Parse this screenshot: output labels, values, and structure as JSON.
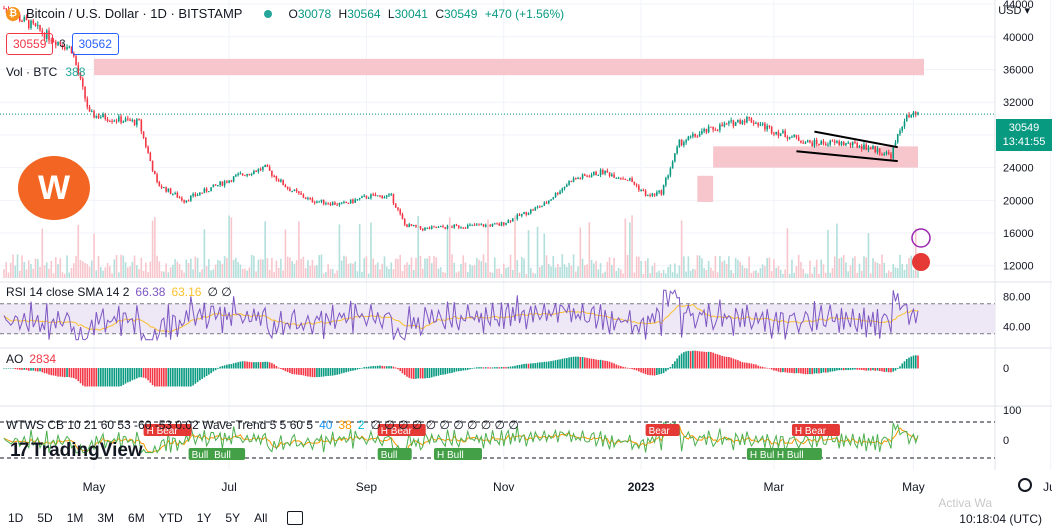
{
  "header": {
    "coin_icon": "bitcoin-icon",
    "title": "Bitcoin / U.S. Dollar · 1D · BITSTAMP",
    "ohlc": [
      {
        "k": "O",
        "v": "30078"
      },
      {
        "k": "H",
        "v": "30564"
      },
      {
        "k": "L",
        "v": "30041"
      },
      {
        "k": "C",
        "v": "30549"
      },
      {
        "k": "",
        "v": "+470 (+1.56%)"
      }
    ]
  },
  "quote": {
    "sell": "30559",
    "spread": "3",
    "buy": "30562"
  },
  "volume": {
    "label": "Vol · BTC",
    "value": "388"
  },
  "currency": "USD",
  "current_price": {
    "value": "30549",
    "countdown": "13:41:55"
  },
  "rsi": {
    "label": "RSI 14 close SMA 14 2",
    "value": "66.38",
    "sma": "63.16",
    "extra": "∅ ∅"
  },
  "ao": {
    "label": "AO",
    "value": "2834"
  },
  "wavetrend": {
    "label": "WTWS CB 10 21 60 53 -60 -53 0.02 Wave Trend 5 5 60 5",
    "v1": "40",
    "v2": "38",
    "v3": "2",
    "extra": "∅ ∅ ∅ ∅ ∅ ∅ ∅ ∅ ∅ ∅ ∅"
  },
  "timeframes": [
    "1D",
    "5D",
    "1M",
    "3M",
    "6M",
    "YTD",
    "1Y",
    "5Y",
    "All"
  ],
  "clock": "10:18:04 (UTC)",
  "watermark": "Activa Wa",
  "brand": "TradingView",
  "brand_mark": "17",
  "logo_text": "W",
  "colors": {
    "up": "#089981",
    "down": "#f23645",
    "zone": "#f7c6cc",
    "rsi": "#7e57c2",
    "sma": "#fbc02d",
    "grid": "#f0f3fa"
  },
  "chart_data": {
    "type": "candlestick",
    "x_ticks": [
      "May",
      "Jul",
      "Sep",
      "Nov",
      "2023",
      "Mar",
      "May",
      "Jul"
    ],
    "y_ticks": [
      12000,
      16000,
      20000,
      24000,
      28000,
      32000,
      36000,
      40000,
      44000
    ],
    "ylim": [
      10500,
      44500
    ],
    "anchors": [
      [
        0,
        43500
      ],
      [
        20,
        40000
      ],
      [
        30,
        38500
      ],
      [
        38,
        30500
      ],
      [
        48,
        30000
      ],
      [
        60,
        29500
      ],
      [
        68,
        22000
      ],
      [
        80,
        20000
      ],
      [
        92,
        21500
      ],
      [
        104,
        23000
      ],
      [
        116,
        24000
      ],
      [
        126,
        21500
      ],
      [
        136,
        20000
      ],
      [
        150,
        19500
      ],
      [
        162,
        20500
      ],
      [
        172,
        20500
      ],
      [
        178,
        17000
      ],
      [
        186,
        16500
      ],
      [
        200,
        16800
      ],
      [
        220,
        17000
      ],
      [
        240,
        19500
      ],
      [
        252,
        22500
      ],
      [
        266,
        23500
      ],
      [
        278,
        22500
      ],
      [
        286,
        20500
      ],
      [
        292,
        21000
      ],
      [
        300,
        27000
      ],
      [
        312,
        28500
      ],
      [
        330,
        30000
      ],
      [
        342,
        28500
      ],
      [
        358,
        27000
      ],
      [
        372,
        27000
      ],
      [
        384,
        26500
      ],
      [
        394,
        25500
      ],
      [
        400,
        30000
      ],
      [
        406,
        30500
      ]
    ],
    "volume_range": [
      0,
      388
    ],
    "resistance_zone": {
      "y": [
        35300,
        37300
      ],
      "start_day": 40
    },
    "support_zone": {
      "y": [
        24000,
        26600
      ],
      "start_day": 315,
      "small_box": {
        "start_day": 308,
        "y": [
          19800,
          23000
        ]
      }
    },
    "wedge": {
      "upper": [
        [
          360,
          28400
        ],
        [
          397,
          26500
        ]
      ],
      "lower": [
        [
          352,
          26000
        ],
        [
          397,
          24800
        ]
      ]
    },
    "rsi_levels": [
      40,
      80
    ],
    "rsi_bands": [
      70,
      30
    ],
    "wt_levels": [
      100,
      0
    ],
    "ao_levels": [
      0
    ],
    "wt_markers": [
      {
        "day": 62,
        "label": "H Bear",
        "kind": "bear"
      },
      {
        "day": 82,
        "label": "Bull",
        "kind": "bull"
      },
      {
        "day": 92,
        "label": "Bull",
        "kind": "bull"
      },
      {
        "day": 166,
        "label": "H Bear",
        "kind": "bear"
      },
      {
        "day": 166,
        "label": "Bull",
        "kind": "bull"
      },
      {
        "day": 191,
        "label": "H Bull",
        "kind": "bull"
      },
      {
        "day": 285,
        "label": "Bear",
        "kind": "bear"
      },
      {
        "day": 330,
        "label": "H Bull",
        "kind": "bull"
      },
      {
        "day": 342,
        "label": "H Bull",
        "kind": "bull"
      },
      {
        "day": 350,
        "label": "H Bear",
        "kind": "bear"
      }
    ]
  }
}
